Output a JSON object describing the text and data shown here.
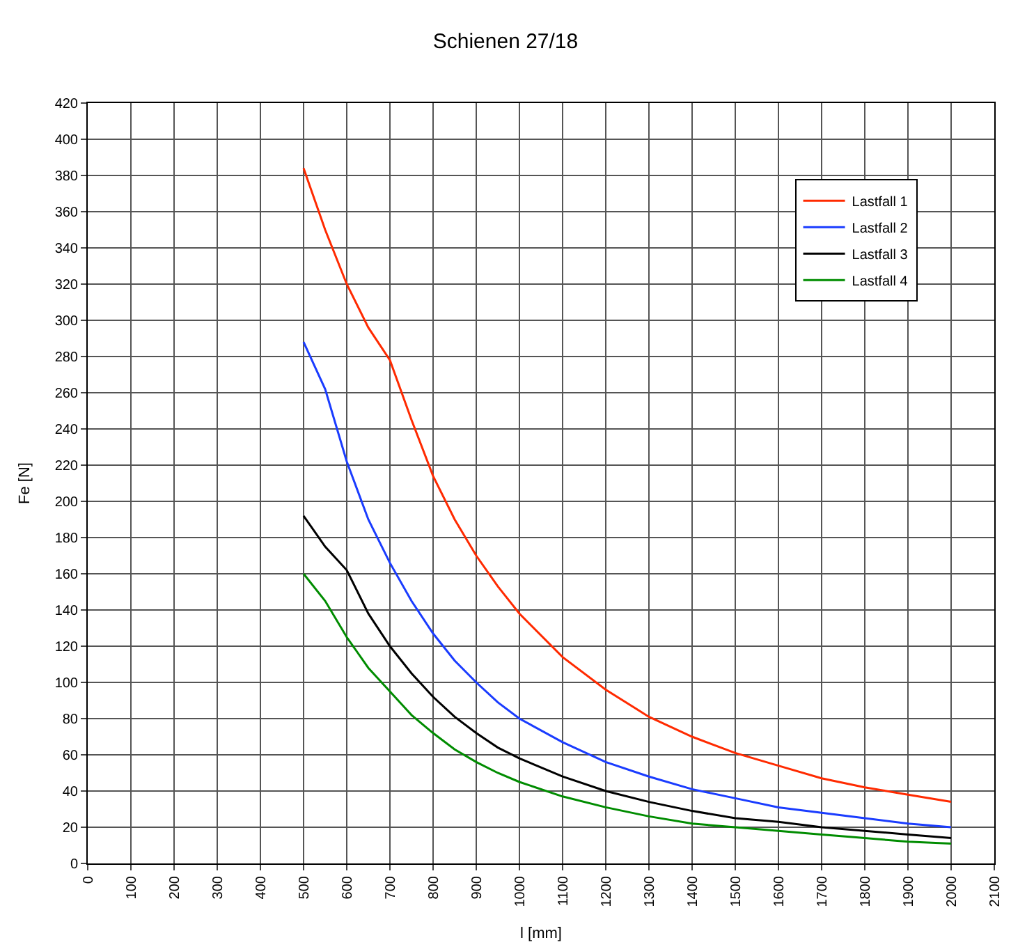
{
  "chart_data": {
    "type": "line",
    "title": "Schienen 27/18",
    "xlabel": "l [mm]",
    "ylabel": "Fe [N]",
    "x": [
      500,
      550,
      600,
      650,
      700,
      750,
      800,
      850,
      900,
      950,
      1000,
      1100,
      1200,
      1300,
      1400,
      1500,
      1600,
      1700,
      1800,
      1900,
      2000
    ],
    "series": [
      {
        "name": "Lastfall 1",
        "color": "#ff2a00",
        "values": [
          384,
          350,
          320,
          296,
          278,
          245,
          214,
          190,
          170,
          153,
          138,
          114,
          96,
          81,
          70,
          61,
          54,
          47,
          42,
          38,
          34
        ]
      },
      {
        "name": "Lastfall 2",
        "color": "#1a3cff",
        "values": [
          288,
          262,
          222,
          190,
          166,
          145,
          127,
          112,
          100,
          89,
          80,
          67,
          56,
          48,
          41,
          36,
          31,
          28,
          25,
          22,
          20
        ]
      },
      {
        "name": "Lastfall 3",
        "color": "#000000",
        "values": [
          192,
          175,
          162,
          138,
          120,
          105,
          92,
          81,
          72,
          64,
          58,
          48,
          40,
          34,
          29,
          25,
          23,
          20,
          18,
          16,
          14
        ]
      },
      {
        "name": "Lastfall 4",
        "color": "#008c00",
        "values": [
          160,
          145,
          125,
          108,
          95,
          82,
          72,
          63,
          56,
          50,
          45,
          37,
          31,
          26,
          22,
          20,
          18,
          16,
          14,
          12,
          11
        ]
      }
    ],
    "xlim": [
      0,
      2100
    ],
    "xticks": [
      0,
      100,
      200,
      300,
      400,
      500,
      600,
      700,
      800,
      900,
      1000,
      1100,
      1200,
      1300,
      1400,
      1500,
      1600,
      1700,
      1800,
      1900,
      2000,
      2100
    ],
    "ylim": [
      0,
      420
    ],
    "yticks": [
      0,
      20,
      40,
      60,
      80,
      100,
      120,
      140,
      160,
      180,
      200,
      220,
      240,
      260,
      280,
      300,
      320,
      340,
      360,
      380,
      400,
      420
    ],
    "grid": true,
    "legend": "top right",
    "marker": "none",
    "line_style": "solid"
  }
}
